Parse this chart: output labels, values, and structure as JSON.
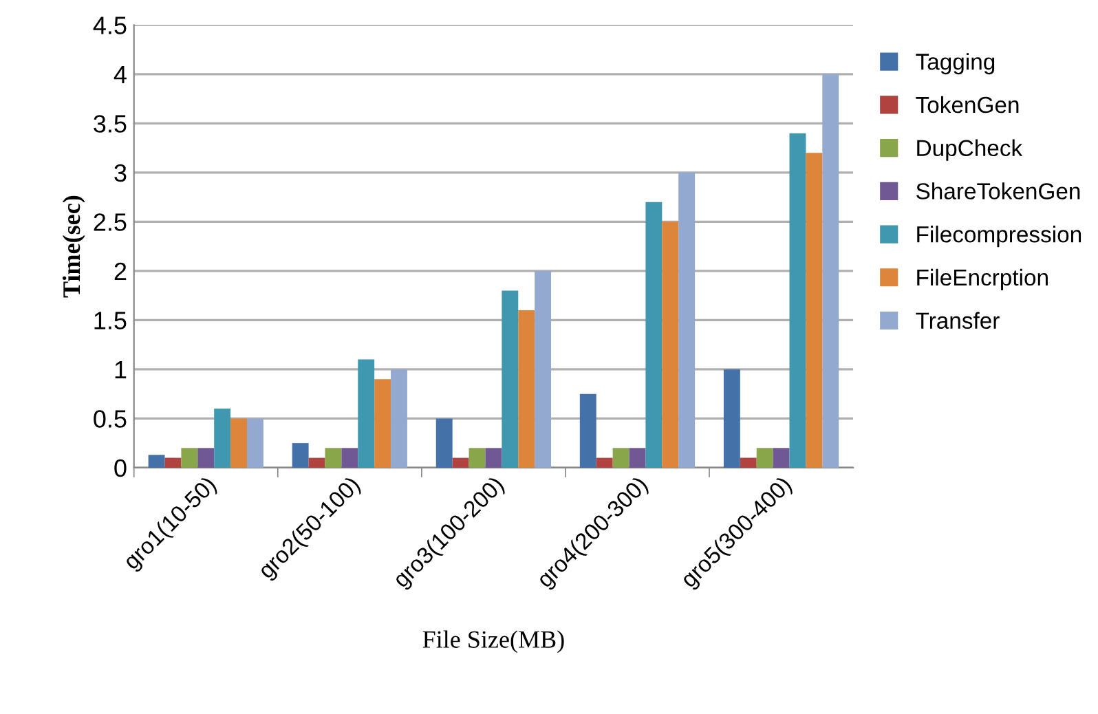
{
  "chart_data": {
    "type": "bar",
    "xlabel": "File Size(MB)",
    "ylabel": "Time(sec)",
    "categories": [
      "gro1(10-50)",
      "gro2(50-100)",
      "gro3(100-200)",
      "gro4(200-300)",
      "gro5(300-400)"
    ],
    "series": [
      {
        "name": "Tagging",
        "color": "#4472a8",
        "values": [
          0.13,
          0.25,
          0.5,
          0.75,
          1
        ]
      },
      {
        "name": "TokenGen",
        "color": "#b0433f",
        "values": [
          0.1,
          0.1,
          0.1,
          0.1,
          0.1
        ]
      },
      {
        "name": "DupCheck",
        "color": "#8aa64a",
        "values": [
          0.2,
          0.2,
          0.2,
          0.2,
          0.2
        ]
      },
      {
        "name": "ShareTokenGen",
        "color": "#6f5894",
        "values": [
          0.2,
          0.2,
          0.2,
          0.2,
          0.2
        ]
      },
      {
        "name": "Filecompression",
        "color": "#3f98b0",
        "values": [
          0.6,
          1.1,
          1.8,
          2.7,
          3.4
        ]
      },
      {
        "name": "FileEncrption",
        "color": "#dd853a",
        "values": [
          0.5,
          0.9,
          1.6,
          2.5,
          3.2
        ]
      },
      {
        "name": "Transfer",
        "color": "#94a9d0",
        "values": [
          0.5,
          1,
          2,
          3,
          4
        ]
      }
    ],
    "ylim": [
      0,
      4.5
    ],
    "yticks": [
      0,
      0.5,
      1,
      1.5,
      2,
      2.5,
      3,
      3.5,
      4,
      4.5
    ],
    "grid": "y",
    "legend": "right"
  }
}
